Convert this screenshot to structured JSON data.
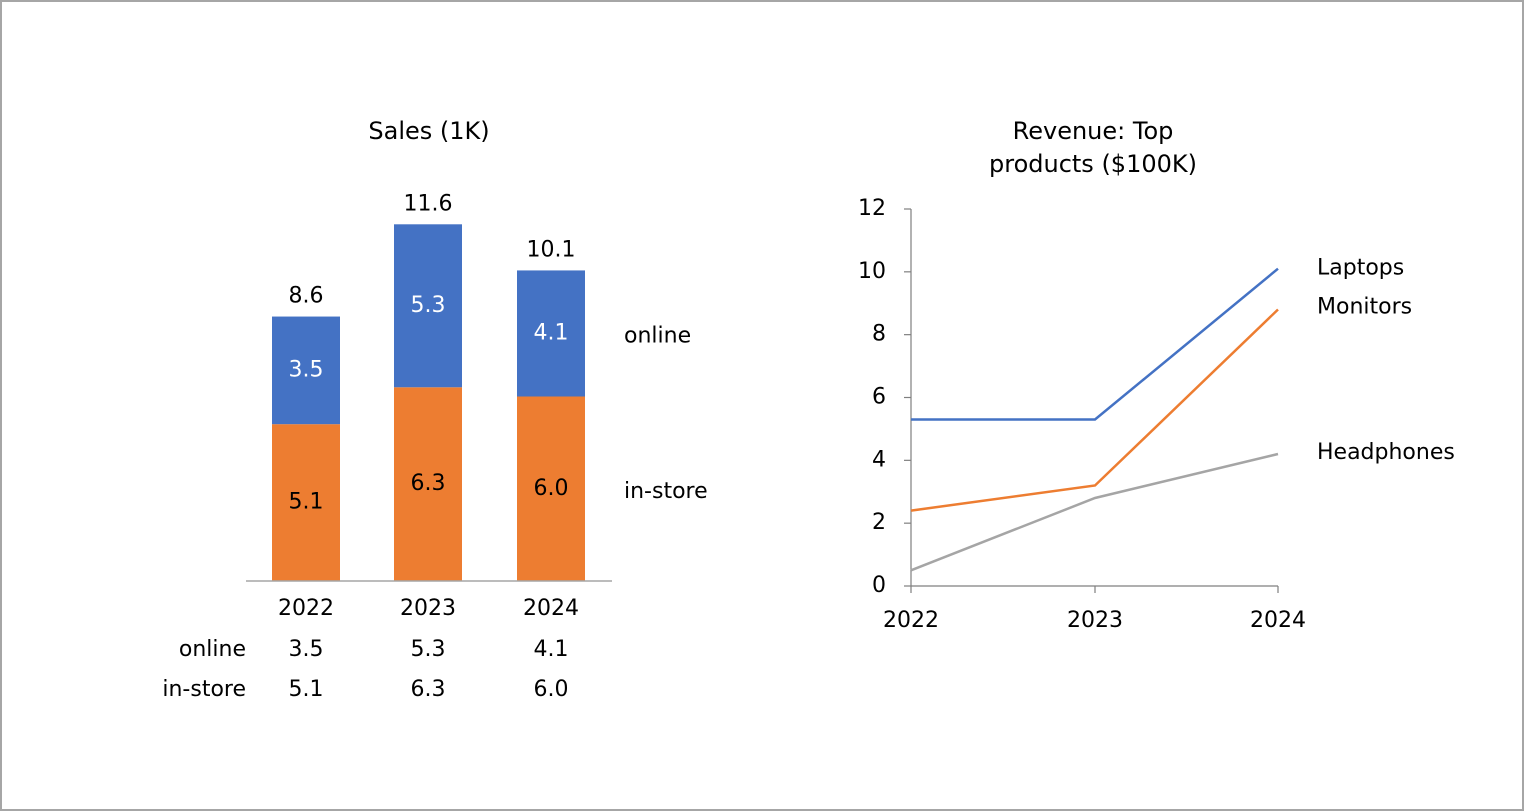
{
  "chart_data": [
    {
      "type": "bar",
      "stacked": true,
      "title": "Sales (1K)",
      "categories": [
        "2022",
        "2023",
        "2024"
      ],
      "series": [
        {
          "name": "in-store",
          "values": [
            5.1,
            6.3,
            6.0
          ],
          "value_labels": [
            "5.1",
            "6.3",
            "6.0"
          ],
          "color": "#ED7D31",
          "label_color": "#000000"
        },
        {
          "name": "online",
          "values": [
            3.5,
            5.3,
            4.1
          ],
          "value_labels": [
            "3.5",
            "5.3",
            "4.1"
          ],
          "color": "#4472C4",
          "label_color": "#ffffff"
        }
      ],
      "totals": [
        "8.6",
        "11.6",
        "10.1"
      ],
      "data_table": {
        "rows": [
          {
            "label": "online",
            "values": [
              "3.5",
              "5.3",
              "4.1"
            ]
          },
          {
            "label": "in-store",
            "values": [
              "5.1",
              "6.3",
              "6.0"
            ]
          }
        ]
      },
      "ylim": [
        0,
        12.3
      ],
      "grid": false,
      "legend": "right"
    },
    {
      "type": "line",
      "title": "Revenue: Top",
      "title_line2": "products ($100K)",
      "x": [
        "2022",
        "2023",
        "2024"
      ],
      "series": [
        {
          "name": "Laptops",
          "values": [
            5.3,
            5.3,
            10.1
          ],
          "color": "#4472C4"
        },
        {
          "name": "Monitors",
          "values": [
            2.4,
            3.2,
            8.8
          ],
          "color": "#ED7D31"
        },
        {
          "name": "Headphones",
          "values": [
            0.5,
            2.8,
            4.2
          ],
          "color": "#A5A5A5"
        }
      ],
      "yticks": [
        "0",
        "2",
        "4",
        "6",
        "8",
        "10",
        "12"
      ],
      "ylim": [
        0,
        12
      ],
      "grid": false,
      "legend": "right"
    }
  ]
}
